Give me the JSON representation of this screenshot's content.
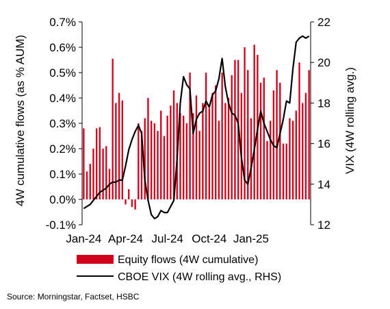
{
  "chart_data": {
    "type": "bar+line",
    "ylabel_left": "4W cumulative flows (as % AUM)",
    "ylabel_right": "VIX (4W rolling avg.)",
    "y_left": {
      "min": -0.1,
      "max": 0.7,
      "ticks": [
        "-0.1%",
        "0.0%",
        "0.1%",
        "0.2%",
        "0.3%",
        "0.4%",
        "0.5%",
        "0.6%",
        "0.7%"
      ],
      "tick_values": [
        -0.1,
        0.0,
        0.1,
        0.2,
        0.3,
        0.4,
        0.5,
        0.6,
        0.7
      ]
    },
    "y_right": {
      "min": 12,
      "max": 22,
      "ticks": [
        "12",
        "14",
        "16",
        "18",
        "20",
        "22"
      ],
      "tick_values": [
        12,
        14,
        16,
        18,
        20,
        22
      ]
    },
    "x_ticks": [
      "Jan-24",
      "Apr-24",
      "Jul-24",
      "Oct-24",
      "Jan-25"
    ],
    "x_tick_weeks": [
      0,
      13,
      26,
      39,
      52
    ],
    "bar_color": "#d0021b",
    "line_color": "#000000",
    "series": [
      {
        "name": "Equity flows (4W cumulative)",
        "kind": "bar",
        "values": [
          0.28,
          0.11,
          0.14,
          0.2,
          0.28,
          0.285,
          0.2,
          0.21,
          0.12,
          0.555,
          0.38,
          0.42,
          0.39,
          -0.02,
          0.04,
          -0.03,
          -0.04,
          0.3,
          0.27,
          0.32,
          0.4,
          0.31,
          0.3,
          0.27,
          0.35,
          0.25,
          0.33,
          0.37,
          0.43,
          0.38,
          0.34,
          0.33,
          0.3,
          0.5,
          0.34,
          0.41,
          0.27,
          0.38,
          0.5,
          0.36,
          0.42,
          0.45,
          0.31,
          0.5,
          0.38,
          0.4,
          0.49,
          0.55,
          0.55,
          0.42,
          0.6,
          0.51,
          0.32,
          0.61,
          0.57,
          0.46,
          0.48,
          0.23,
          0.31,
          0.43,
          0.51,
          0.46,
          0.22,
          0.22,
          0.32,
          0.31,
          0.35,
          0.54,
          0.38,
          0.42,
          0.51
        ]
      },
      {
        "name": "CBOE VIX (4W rolling avg., RHS)",
        "kind": "line",
        "values": [
          12.8,
          12.9,
          13.0,
          13.2,
          13.4,
          13.6,
          13.7,
          13.8,
          14.0,
          14.1,
          14.1,
          14.2,
          14.2,
          14.9,
          15.7,
          16.2,
          16.6,
          16.9,
          16.5,
          14.2,
          13.2,
          12.5,
          12.3,
          12.4,
          12.7,
          12.6,
          12.6,
          12.9,
          13.2,
          15.2,
          18.0,
          19.3,
          18.9,
          18.7,
          16.5,
          17.2,
          17.5,
          17.6,
          18.1,
          17.8,
          18.4,
          18.6,
          19.2,
          20.2,
          18.8,
          18.0,
          17.5,
          17.4,
          17.0,
          15.3,
          14.2,
          14.0,
          14.8,
          15.7,
          16.7,
          17.6,
          17.0,
          16.6,
          16.2,
          15.9,
          15.8,
          16.5,
          17.2,
          18.1,
          18.0,
          19.7,
          21.0,
          21.2,
          21.3,
          21.2,
          21.3
        ]
      }
    ],
    "legend_position": "bottom"
  },
  "source": "Source: Morningstar, Factset, HSBC"
}
